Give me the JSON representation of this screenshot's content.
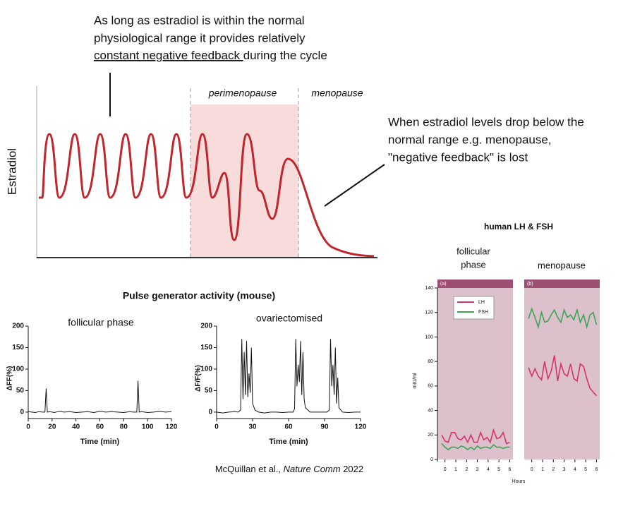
{
  "top_note": {
    "lines": [
      "As long as estradiol is within the normal",
      "physiological range it provides relatively"
    ],
    "underlined": "constant negative feedback ",
    "rest": "during the cycle"
  },
  "right_note": {
    "lines": [
      "When estradiol levels drop below the",
      "normal range e.g. menopause,",
      "\"negative feedback\" is lost"
    ]
  },
  "estradiol": {
    "y_label": "Estradiol",
    "phases": [
      "perimenopause",
      "menopause"
    ]
  },
  "pulse_title": "Pulse generator activity (mouse)",
  "human": {
    "title": "human LH & FSH",
    "x_label": "Hours"
  },
  "citation": {
    "authors": "McQuillan et al., ",
    "journal": "Nature Comm",
    "year": " 2022"
  },
  "chart_data": [
    {
      "type": "line",
      "title": "follicular phase",
      "x_label": "Time (min)",
      "y_label": "ΔFF(%)",
      "color": "#111111",
      "x": [
        0,
        3,
        6,
        9,
        12,
        14,
        15,
        16,
        18,
        22,
        26,
        30,
        35,
        40,
        45,
        50,
        55,
        60,
        65,
        70,
        75,
        80,
        85,
        88,
        90,
        91,
        92,
        93,
        95,
        100,
        105,
        110,
        115,
        120
      ],
      "values": [
        1,
        0,
        -1,
        1,
        0,
        0,
        55,
        0,
        1,
        -1,
        2,
        0,
        1,
        -1,
        0,
        1,
        -1,
        2,
        0,
        1,
        0,
        -1,
        1,
        0,
        0,
        0,
        73,
        0,
        1,
        -1,
        0,
        2,
        0,
        1
      ],
      "xlim": [
        0,
        120
      ],
      "xticks": [
        0,
        20,
        40,
        60,
        80,
        100,
        120
      ],
      "ylim": [
        -10,
        200
      ],
      "yticks": [
        0,
        50,
        100,
        150,
        200
      ]
    },
    {
      "type": "line",
      "title": "ovariectomised",
      "x_label": "Time (min)",
      "y_label": "ΔF/F(%)",
      "color": "#111111",
      "x": [
        0,
        5,
        10,
        15,
        18,
        20,
        21,
        22,
        23,
        24,
        25,
        26,
        27,
        28,
        29,
        30,
        32,
        35,
        40,
        45,
        50,
        55,
        60,
        64,
        65,
        66,
        67,
        68,
        69,
        70,
        71,
        72,
        73,
        74,
        78,
        85,
        92,
        94,
        95,
        96,
        97,
        98,
        99,
        100,
        101,
        102,
        105,
        110,
        115,
        120
      ],
      "values": [
        0,
        -2,
        0,
        1,
        0,
        5,
        170,
        30,
        140,
        40,
        165,
        35,
        90,
        45,
        150,
        20,
        5,
        0,
        -2,
        0,
        0,
        -1,
        0,
        0,
        8,
        170,
        60,
        110,
        70,
        165,
        40,
        140,
        30,
        10,
        0,
        0,
        0,
        5,
        170,
        60,
        110,
        40,
        150,
        20,
        80,
        10,
        0,
        -1,
        0,
        0
      ],
      "xlim": [
        0,
        120
      ],
      "xticks": [
        0,
        30,
        60,
        90,
        120
      ],
      "ylim": [
        -10,
        200
      ],
      "yticks": [
        0,
        50,
        100,
        150,
        200
      ]
    },
    {
      "type": "line",
      "title": [
        "follicular",
        "phase"
      ],
      "panel_label": "(a)",
      "y_label": "mIU/ml",
      "legend": "upper left",
      "x": [
        -0.3,
        0,
        0.3,
        0.6,
        0.9,
        1.2,
        1.5,
        1.8,
        2.1,
        2.4,
        2.7,
        3.0,
        3.3,
        3.6,
        3.9,
        4.2,
        4.5,
        4.8,
        5.1,
        5.4,
        5.7,
        6.0
      ],
      "series": [
        {
          "name": "LH",
          "color": "#d6336c",
          "values": [
            20,
            15,
            14,
            22,
            22,
            17,
            16,
            19,
            14,
            20,
            14,
            14,
            22,
            16,
            18,
            14,
            24,
            17,
            18,
            22,
            13,
            14
          ]
        },
        {
          "name": "FSH",
          "color": "#3aa655",
          "values": [
            13,
            10,
            8,
            10,
            10,
            9,
            11,
            10,
            8,
            10,
            8,
            11,
            9,
            10,
            10,
            9,
            12,
            10,
            10,
            9,
            10,
            10
          ]
        }
      ],
      "xlim": [
        -0.7,
        6.3
      ],
      "xticks": [
        0,
        1,
        2,
        3,
        4,
        5,
        6
      ],
      "ylim": [
        0,
        140
      ],
      "yticks": [
        0,
        20,
        40,
        60,
        80,
        100,
        120,
        140
      ]
    },
    {
      "type": "line",
      "title": [
        "menopause"
      ],
      "panel_label": "(b)",
      "x": [
        -0.3,
        0,
        0.3,
        0.6,
        0.9,
        1.2,
        1.5,
        1.8,
        2.1,
        2.4,
        2.7,
        3.0,
        3.3,
        3.6,
        3.9,
        4.2,
        4.5,
        4.8,
        5.1,
        5.4,
        5.7,
        6.0
      ],
      "series": [
        {
          "color": "#3aa655",
          "values": [
            115,
            123,
            116,
            108,
            120,
            112,
            113,
            118,
            122,
            116,
            112,
            122,
            116,
            118,
            114,
            122,
            112,
            118,
            108,
            118,
            120,
            110
          ]
        },
        {
          "color": "#d6336c",
          "values": [
            75,
            68,
            74,
            68,
            65,
            80,
            66,
            72,
            85,
            64,
            78,
            70,
            68,
            78,
            66,
            64,
            78,
            76,
            66,
            58,
            55,
            52
          ]
        }
      ],
      "xlim": [
        -0.7,
        6.3
      ],
      "xticks": [
        0,
        1,
        2,
        3,
        4,
        5,
        6
      ],
      "ylim": [
        0,
        140
      ]
    }
  ]
}
